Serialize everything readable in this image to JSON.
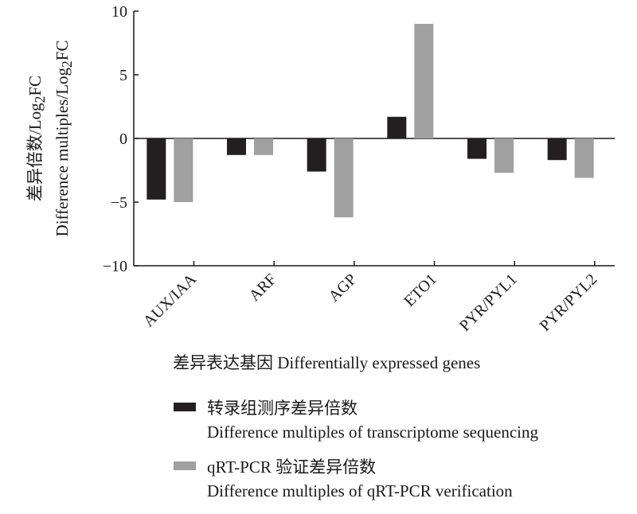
{
  "chart_data": {
    "type": "bar",
    "categories": [
      "AUX/IAA",
      "ARF",
      "AGP",
      "ETO1",
      "PYR/PYL1",
      "PYR/PYL2"
    ],
    "series": [
      {
        "name": "转录组测序差异倍数 Difference multiples of transcriptome sequencing",
        "color": "#231f20",
        "values": [
          -4.8,
          -1.3,
          -2.6,
          1.7,
          -1.6,
          -1.7
        ]
      },
      {
        "name": "qRT-PCR 验证差异倍数 Difference multiples of qRT-PCR verification",
        "color": "#a0a0a0",
        "values": [
          -5.0,
          -1.3,
          -6.2,
          9.0,
          -2.7,
          -3.1
        ]
      }
    ],
    "ylim": [
      -10,
      10
    ],
    "yticks": [
      10,
      5,
      0,
      -5,
      -10
    ],
    "ytick_labels": [
      "10",
      "5",
      "0",
      "−5",
      "−10"
    ],
    "ylabel_zh": "差异倍数/Log",
    "ylabel_en": "Difference multiples/Log",
    "ylabel_sub": "2",
    "ylabel_suffix": "FC",
    "xlabel": "差异表达基因 Differentially expressed genes",
    "legend": [
      {
        "zh": "转录组测序差异倍数",
        "en": "Difference multiples of transcriptome sequencing"
      },
      {
        "zh": "qRT-PCR 验证差异倍数",
        "en": "Difference multiples of qRT-PCR verification"
      }
    ],
    "legend_position": "bottom",
    "grid": false
  }
}
